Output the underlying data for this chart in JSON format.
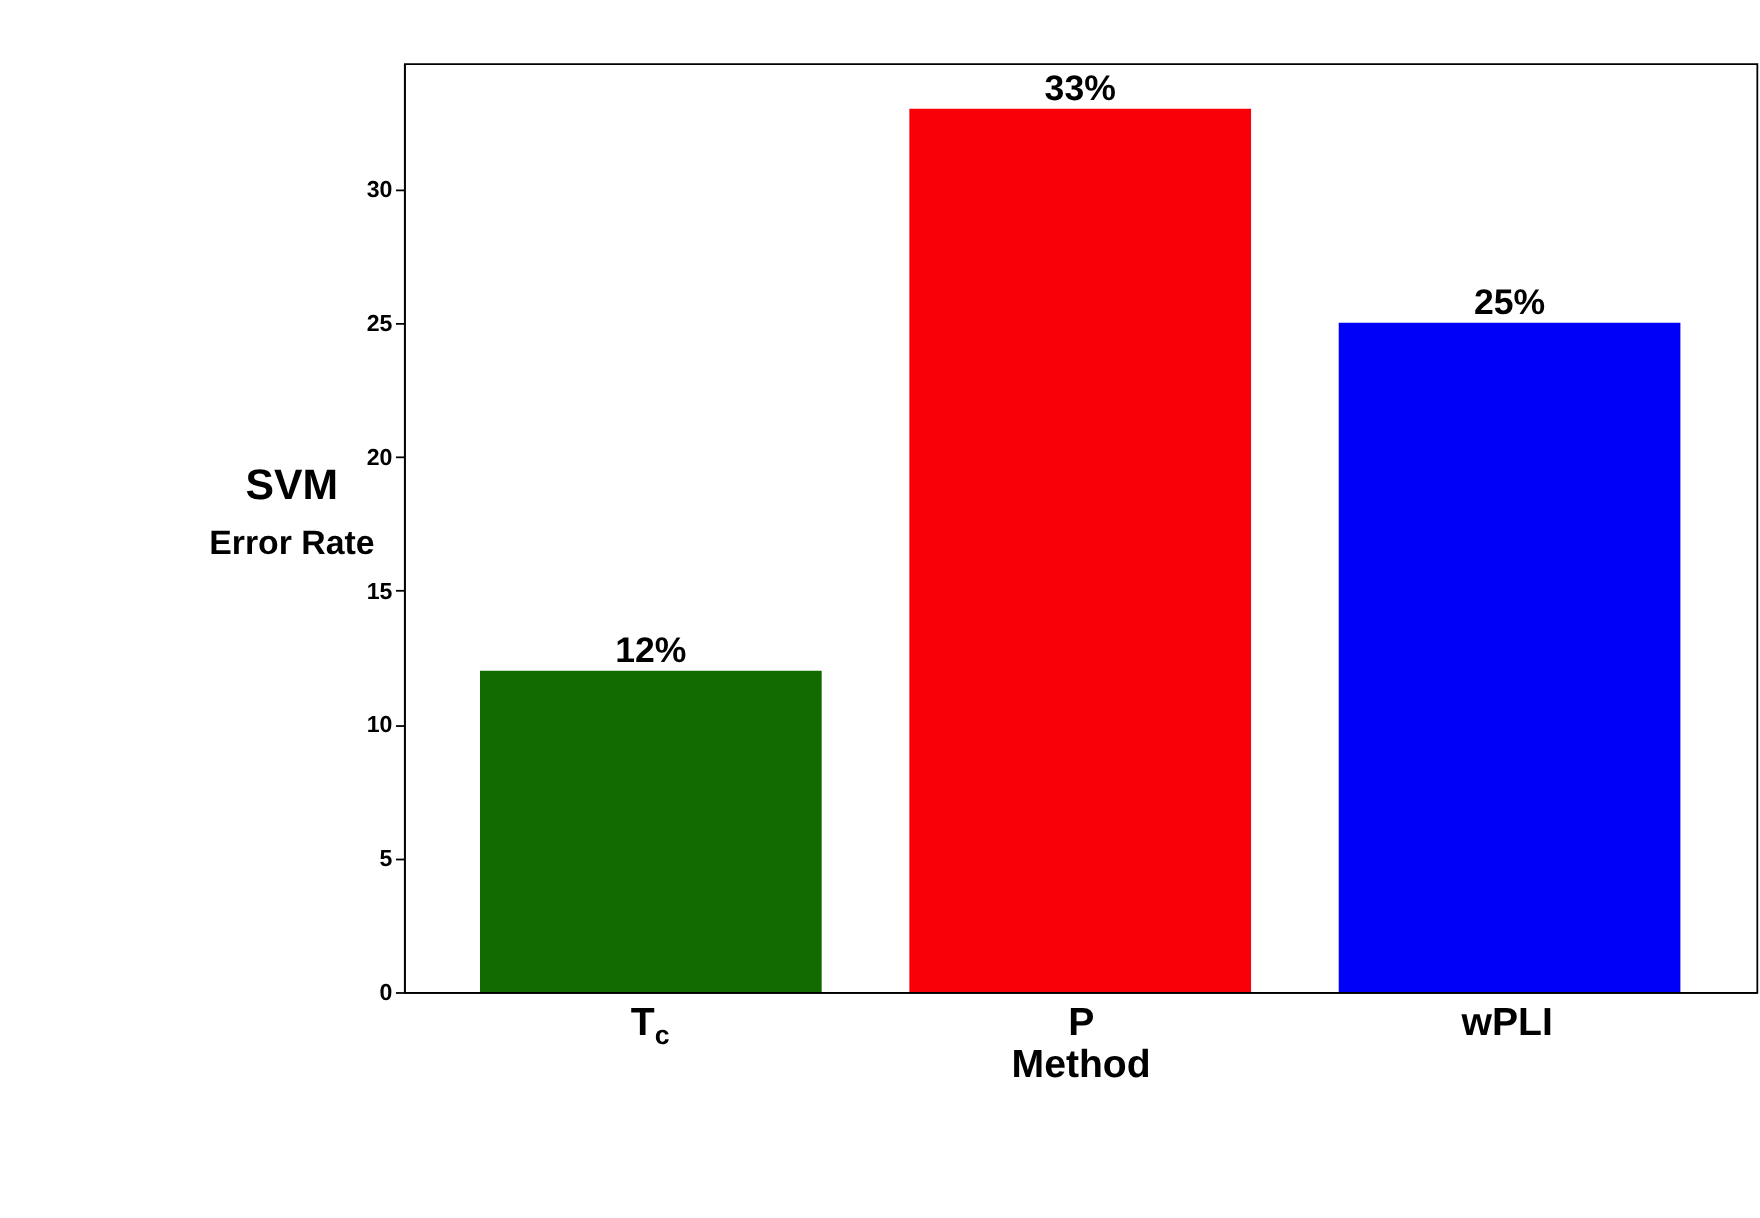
{
  "chart_data": {
    "type": "bar",
    "xlabel": "Method",
    "ylabel": "SVM\nError Rate",
    "categories": [
      "T$_{c}$",
      "P",
      "wPLI"
    ],
    "values": [
      12,
      33,
      25
    ],
    "colors": [
      "#116b00",
      "#f90008",
      "#0000f9"
    ],
    "value_labels": [
      "12%",
      "33%",
      "25%"
    ],
    "ylim": [
      0,
      34.7
    ],
    "yticks": [
      0,
      5,
      10,
      15,
      20,
      25,
      30
    ],
    "grid": false
  }
}
